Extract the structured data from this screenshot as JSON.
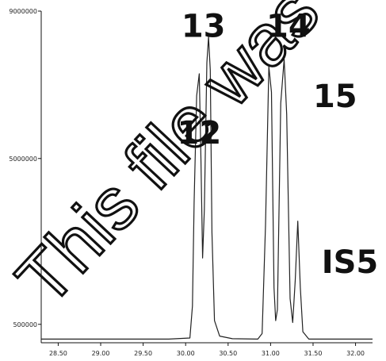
{
  "chart_data": {
    "type": "line",
    "title": "",
    "xlabel": "",
    "ylabel": "",
    "xlim": [
      28.3,
      32.2
    ],
    "ylim": [
      0,
      9000000
    ],
    "x_ticks": [
      "28.50",
      "29.00",
      "29.50",
      "30.00",
      "30.50",
      "31.00",
      "31.50",
      "32.00"
    ],
    "y_ticks": [
      "9000000",
      "5000000",
      "500000"
    ],
    "grid": false,
    "series": [
      {
        "points": [
          [
            28.3,
            100000
          ],
          [
            29.0,
            100000
          ],
          [
            29.8,
            100000
          ],
          [
            30.05,
            130000
          ],
          [
            30.08,
            1000000
          ],
          [
            30.1,
            3800000
          ],
          [
            30.13,
            6700000
          ],
          [
            30.16,
            7300000
          ],
          [
            30.18,
            5000000
          ],
          [
            30.2,
            2300000
          ],
          [
            30.22,
            3600000
          ],
          [
            30.25,
            7600000
          ],
          [
            30.27,
            8300000
          ],
          [
            30.29,
            7400000
          ],
          [
            30.31,
            3000000
          ],
          [
            30.34,
            600000
          ],
          [
            30.4,
            180000
          ],
          [
            30.55,
            110000
          ],
          [
            30.85,
            100000
          ],
          [
            30.9,
            250000
          ],
          [
            30.94,
            3200000
          ],
          [
            30.98,
            7500000
          ],
          [
            31.01,
            6800000
          ],
          [
            31.04,
            1500000
          ],
          [
            31.06,
            600000
          ],
          [
            31.08,
            900000
          ],
          [
            31.12,
            6500000
          ],
          [
            31.16,
            7700000
          ],
          [
            31.19,
            6200000
          ],
          [
            31.23,
            1200000
          ],
          [
            31.26,
            550000
          ],
          [
            31.29,
            1700000
          ],
          [
            31.32,
            3300000
          ],
          [
            31.35,
            1500000
          ],
          [
            31.38,
            300000
          ],
          [
            31.45,
            100000
          ],
          [
            32.2,
            100000
          ]
        ]
      }
    ],
    "peak_labels": [
      {
        "text": "12",
        "x": 29.9,
        "y": 5400000
      },
      {
        "text": "13",
        "x": 29.95,
        "y": 8300000
      },
      {
        "text": "14",
        "x": 30.95,
        "y": 8300000
      },
      {
        "text": "15",
        "x": 31.5,
        "y": 6400000
      },
      {
        "text": "IS5",
        "x": 31.6,
        "y": 1900000
      }
    ]
  },
  "watermark": {
    "text": "This file was sa"
  }
}
